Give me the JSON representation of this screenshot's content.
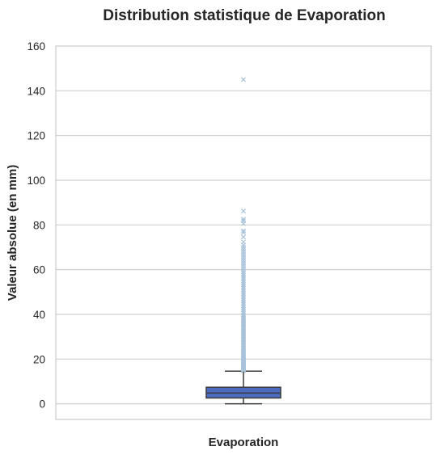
{
  "chart_data": {
    "type": "box",
    "title": "Distribution statistique de Evaporation",
    "xlabel": "Evaporation",
    "ylabel": "Valeur absolue (en mm)",
    "ylim": [
      -7,
      160
    ],
    "yticks": [
      0,
      20,
      40,
      60,
      80,
      100,
      120,
      140,
      160
    ],
    "grid": true,
    "categories": [
      "Evaporation"
    ],
    "box": {
      "whisker_low": 0,
      "q1": 2.6,
      "median": 4.8,
      "q3": 7.4,
      "whisker_high": 14.6
    },
    "outliers": [
      14.8,
      15.0,
      15.2,
      15.4,
      15.6,
      15.8,
      16.0,
      16.2,
      16.4,
      16.6,
      16.8,
      17.0,
      17.2,
      17.4,
      17.6,
      17.8,
      18.0,
      18.2,
      18.4,
      18.6,
      18.8,
      19.0,
      19.2,
      19.4,
      19.6,
      19.8,
      20.0,
      20.4,
      20.8,
      21.2,
      21.6,
      22.0,
      22.4,
      22.8,
      23.2,
      23.6,
      24.0,
      24.5,
      25.0,
      25.5,
      26.0,
      26.5,
      27.0,
      27.5,
      28.0,
      28.5,
      29.0,
      29.5,
      30.0,
      30.6,
      31.2,
      31.8,
      32.4,
      33.0,
      33.6,
      34.2,
      34.8,
      35.4,
      36.0,
      36.6,
      37.2,
      37.8,
      38.4,
      39.0,
      39.8,
      40.6,
      41.4,
      42.2,
      43.0,
      43.8,
      44.6,
      45.4,
      46.2,
      47.0,
      47.8,
      48.6,
      49.4,
      50.2,
      51.0,
      51.8,
      52.6,
      53.4,
      54.2,
      55.0,
      55.8,
      56.6,
      57.4,
      58.2,
      59.0,
      60.0,
      61.0,
      62.0,
      63.0,
      64.0,
      65.0,
      66.0,
      67.0,
      68.0,
      69.0,
      70.0,
      71.0,
      72.4,
      74.6,
      76.6,
      77.4,
      80.6,
      81.8,
      82.6,
      86.2,
      145.0
    ],
    "colors": {
      "box_fill": "#4c6abf",
      "box_edge": "#3a3a3a",
      "outlier": "#a8c2da",
      "grid": "#d0d0d0",
      "spine": "#cccccc"
    }
  }
}
